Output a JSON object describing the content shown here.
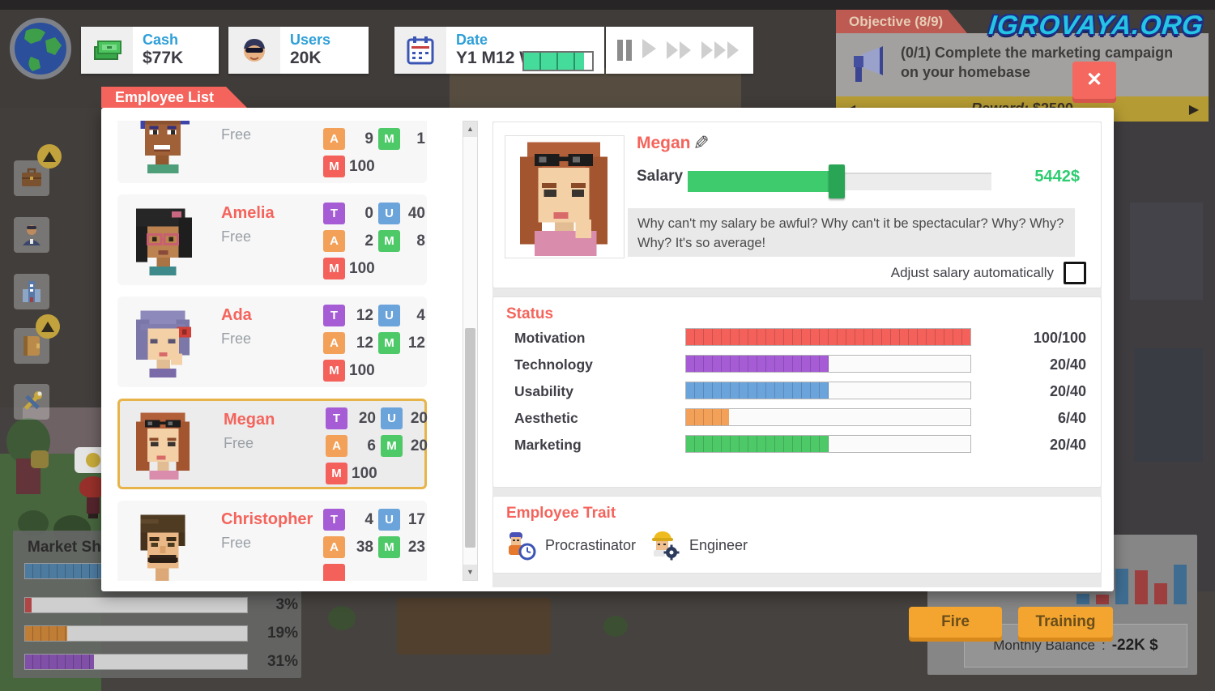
{
  "watermark": "IGROVAYA.ORG",
  "top_bar": {
    "cash": {
      "label": "Cash",
      "value": "$77K"
    },
    "users": {
      "label": "Users",
      "value": "20K"
    },
    "date": {
      "label": "Date",
      "value": "Y1 M12 W",
      "progress_pct": 88
    }
  },
  "objective": {
    "header": "Objective (8/9)",
    "line1": "(0/1) Complete the marketing campaign",
    "line2": "on your homebase",
    "reward_label": "Reward:",
    "reward_value": "$2500",
    "close_symbol": "✕",
    "prev_arrow": "◀",
    "next_arrow": "▶"
  },
  "skill_letters": {
    "t": "T",
    "u": "U",
    "a": "A",
    "m": "M"
  },
  "employee_list": {
    "title": "Employee List",
    "entries": [
      {
        "name": "",
        "status": "Free",
        "t": "",
        "u": "",
        "a": "9",
        "m": "1",
        "mot": "100"
      },
      {
        "name": "Amelia",
        "status": "Free",
        "t": "0",
        "u": "40",
        "a": "2",
        "m": "8",
        "mot": "100"
      },
      {
        "name": "Ada",
        "status": "Free",
        "t": "12",
        "u": "4",
        "a": "12",
        "m": "12",
        "mot": "100"
      },
      {
        "name": "Megan",
        "status": "Free",
        "t": "20",
        "u": "20",
        "a": "6",
        "m": "20",
        "mot": "100"
      },
      {
        "name": "Christopher",
        "status": "Free",
        "t": "4",
        "u": "17",
        "a": "38",
        "m": "23",
        "mot": ""
      }
    ]
  },
  "detail": {
    "name": "Megan",
    "salary_label": "Salary :",
    "salary_value": "5442$",
    "salary_pct": 49,
    "quote": "Why can't my salary be awful? Why can't it be spectacular? Why? Why? Why? It's so average!",
    "adjust_label": "Adjust salary automatically",
    "status_title": "Status",
    "stats": [
      {
        "label": "Motivation",
        "value": "100/100",
        "pct": 100,
        "color": "#f4605a"
      },
      {
        "label": "Technology",
        "value": "20/40",
        "pct": 50,
        "color": "#a55cd5"
      },
      {
        "label": "Usability",
        "value": "20/40",
        "pct": 50,
        "color": "#6ba3db"
      },
      {
        "label": "Aesthetic",
        "value": "6/40",
        "pct": 15,
        "color": "#f3a159"
      },
      {
        "label": "Marketing",
        "value": "20/40",
        "pct": 50,
        "color": "#4dc968"
      }
    ],
    "trait_title": "Employee Trait",
    "traits": [
      {
        "label": "Procrastinator"
      },
      {
        "label": "Engineer"
      }
    ]
  },
  "actions": {
    "fire": "Fire",
    "training": "Training"
  },
  "finance": {
    "label": "Monthly Balance",
    "separator": ":",
    "value": "-22K $",
    "chart": {
      "type": "bar",
      "values": [
        10,
        9,
        34,
        32,
        20,
        38
      ],
      "colors": [
        "blue",
        "red",
        "blue",
        "red",
        "red",
        "blue"
      ]
    }
  },
  "market_share": {
    "title": "Market Share",
    "rows": [
      {
        "label": "",
        "pct": 95,
        "color": "#4d7ba0"
      },
      {
        "label": "3%",
        "pct": 3,
        "color": "#b04545"
      },
      {
        "label": "19%",
        "pct": 19,
        "color": "#c07d36"
      },
      {
        "label": "31%",
        "pct": 31,
        "color": "#8050a8"
      }
    ]
  }
}
